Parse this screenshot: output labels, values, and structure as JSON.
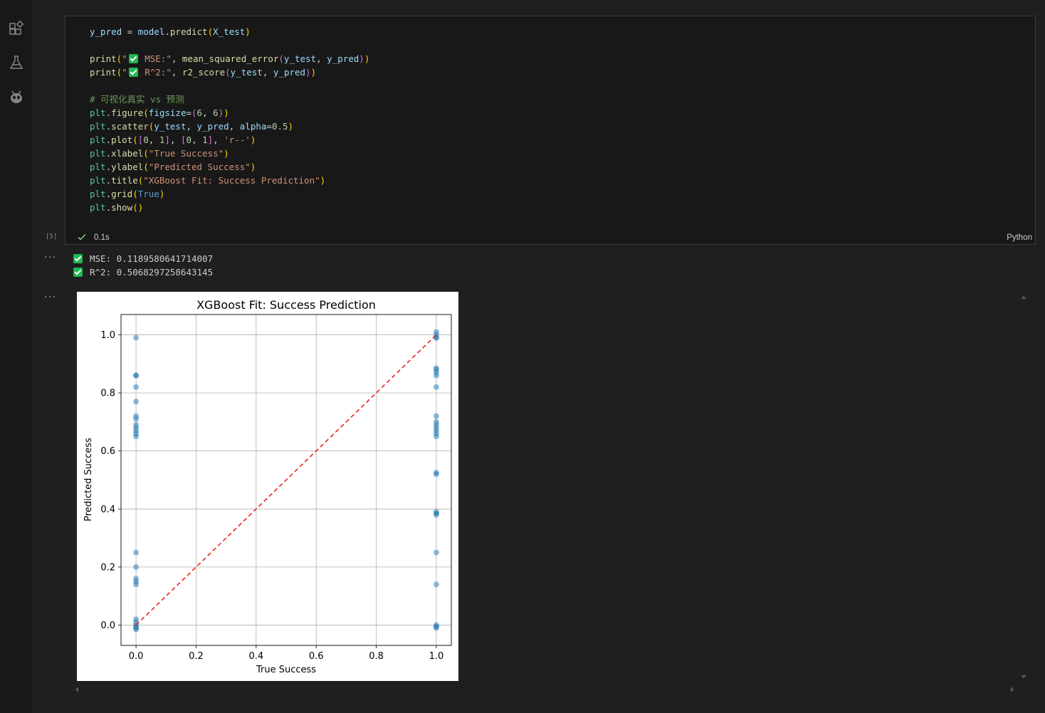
{
  "activity_bar": {
    "icons": [
      "extensions-icon",
      "flask-icon",
      "alien-icon"
    ]
  },
  "cell": {
    "execution_count": "[5]",
    "exec_time": "0.1s",
    "language": "Python"
  },
  "outputs": {
    "mse_text": "MSE: 0.1189580641714007",
    "r2_text": "R^2: 0.5068297258643145"
  },
  "chart_data": {
    "type": "scatter",
    "title": "XGBoost Fit: Success Prediction",
    "xlabel": "True Success",
    "ylabel": "Predicted Success",
    "xlim": [
      -0.05,
      1.05
    ],
    "ylim": [
      -0.07,
      1.07
    ],
    "xticks": [
      "0.0",
      "0.2",
      "0.4",
      "0.6",
      "0.8",
      "1.0"
    ],
    "yticks": [
      "0.0",
      "0.2",
      "0.4",
      "0.6",
      "0.8",
      "1.0"
    ],
    "grid": true,
    "point_color": "#1f77b4",
    "line_color": "#e8231e",
    "points": [
      [
        0,
        0.99
      ],
      [
        0,
        0.86
      ],
      [
        0,
        0.86
      ],
      [
        0,
        0.82
      ],
      [
        0,
        0.77
      ],
      [
        0,
        0.72
      ],
      [
        0,
        0.71
      ],
      [
        0,
        0.69
      ],
      [
        0,
        0.68
      ],
      [
        0,
        0.67
      ],
      [
        0,
        0.66
      ],
      [
        0,
        0.65
      ],
      [
        0,
        0.25
      ],
      [
        0,
        0.2
      ],
      [
        0,
        0.16
      ],
      [
        0,
        0.15
      ],
      [
        0,
        0.14
      ],
      [
        0,
        0.02
      ],
      [
        0,
        0.01
      ],
      [
        0,
        0.0
      ],
      [
        0,
        -0.005
      ],
      [
        0,
        -0.01
      ],
      [
        0,
        -0.015
      ],
      [
        1,
        1.01
      ],
      [
        1,
        1.0
      ],
      [
        1,
        0.99
      ],
      [
        1,
        0.99
      ],
      [
        1,
        0.885
      ],
      [
        1,
        0.88
      ],
      [
        1,
        0.87
      ],
      [
        1,
        0.86
      ],
      [
        1,
        0.82
      ],
      [
        1,
        0.72
      ],
      [
        1,
        0.7
      ],
      [
        1,
        0.69
      ],
      [
        1,
        0.68
      ],
      [
        1,
        0.67
      ],
      [
        1,
        0.66
      ],
      [
        1,
        0.65
      ],
      [
        1,
        0.525
      ],
      [
        1,
        0.52
      ],
      [
        1,
        0.39
      ],
      [
        1,
        0.385
      ],
      [
        1,
        0.38
      ],
      [
        1,
        0.25
      ],
      [
        1,
        0.14
      ],
      [
        1,
        0.0
      ],
      [
        1,
        -0.005
      ],
      [
        1,
        -0.01
      ]
    ],
    "reference_line": {
      "x": [
        0,
        1
      ],
      "y": [
        0,
        1
      ],
      "style": "r--"
    }
  }
}
